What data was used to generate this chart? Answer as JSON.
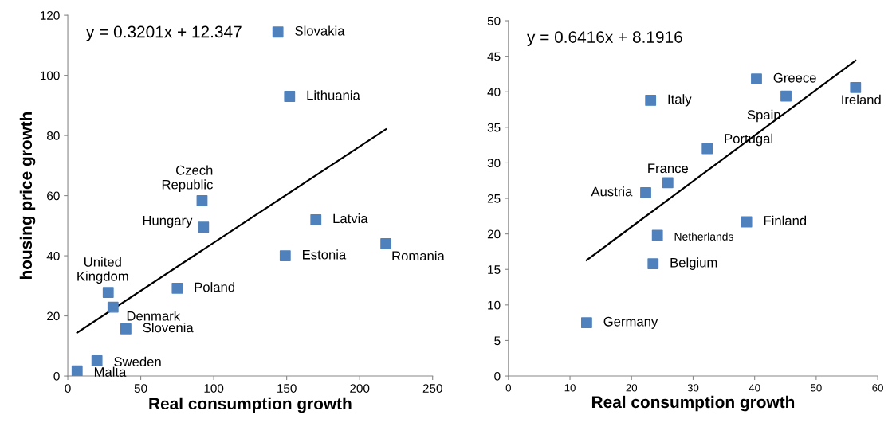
{
  "chart_data": [
    {
      "type": "scatter",
      "xlabel": "Real consumption growth",
      "ylabel": "housing price growth",
      "xlim": [
        0,
        250
      ],
      "xticks": [
        0,
        50,
        100,
        150,
        200,
        250
      ],
      "ylim": [
        0,
        120
      ],
      "yticks": [
        0,
        20,
        40,
        60,
        80,
        100,
        120
      ],
      "grid": false,
      "series": [
        {
          "marker": "square",
          "color": "#4f81bd",
          "x": [
            144,
            152,
            92,
            93,
            170,
            218,
            149,
            75,
            27.7,
            31,
            39.8,
            20,
            6.4
          ],
          "values": [
            114.4,
            93,
            58.3,
            49.5,
            52,
            44,
            40,
            29.2,
            27.8,
            22.9,
            15.7,
            5.1,
            1.7
          ]
        },
        {
          "type": "line",
          "color": "#000000",
          "x": [
            6.4,
            218
          ],
          "values": [
            14.4,
            82.1
          ]
        }
      ],
      "annotations": [
        "y = 0.3201x + 12.347",
        {
          "text": "Slovakia",
          "x": 144,
          "y": 114.4
        },
        {
          "text": "Lithuania",
          "x": 152,
          "y": 93
        },
        {
          "text": "Czech\nRepublic",
          "x": 92,
          "y": 58.3
        },
        {
          "text": "Hungary",
          "x": 93,
          "y": 49.5
        },
        {
          "text": "Latvia",
          "x": 170,
          "y": 52
        },
        {
          "text": "Romania",
          "x": 218,
          "y": 44
        },
        {
          "text": "Estonia",
          "x": 149,
          "y": 40
        },
        {
          "text": "Poland",
          "x": 75,
          "y": 29.2
        },
        {
          "text": "United\nKingdom",
          "x": 27.7,
          "y": 27.8
        },
        {
          "text": "Denmark",
          "x": 31,
          "y": 22.9
        },
        {
          "text": "Slovenia",
          "x": 39.8,
          "y": 15.7
        },
        {
          "text": "Sweden",
          "x": 20,
          "y": 5.1
        },
        {
          "text": "Malta",
          "x": 6.4,
          "y": 1.7
        }
      ]
    },
    {
      "type": "scatter",
      "xlabel": "Real consumption growth",
      "xlim": [
        0,
        60
      ],
      "xticks": [
        0,
        10,
        20,
        30,
        40,
        50,
        60
      ],
      "ylim": [
        0,
        50
      ],
      "yticks": [
        0,
        5,
        10,
        15,
        20,
        25,
        30,
        35,
        40,
        45,
        50
      ],
      "grid": false,
      "series": [
        {
          "marker": "square",
          "color": "#4f81bd",
          "x": [
            40.3,
            45.1,
            56.4,
            23.1,
            32.3,
            25.9,
            22.3,
            38.7,
            24.2,
            23.5,
            12.7
          ],
          "values": [
            41.8,
            39.4,
            40.6,
            38.8,
            32.0,
            27.2,
            25.8,
            21.7,
            19.8,
            15.8,
            7.5
          ]
        },
        {
          "type": "line",
          "color": "#000000",
          "x": [
            12.7,
            56.4
          ],
          "values": [
            16.3,
            44.4
          ]
        }
      ],
      "annotations": [
        "y = 0.6416x + 8.1916",
        {
          "text": "Greece",
          "x": 40.3,
          "y": 41.8
        },
        {
          "text": "Spain",
          "x": 45.1,
          "y": 39.4
        },
        {
          "text": "Ireland",
          "x": 56.4,
          "y": 40.6
        },
        {
          "text": "Italy",
          "x": 23.1,
          "y": 38.8
        },
        {
          "text": "Portugal",
          "x": 32.3,
          "y": 32.0
        },
        {
          "text": "France",
          "x": 25.9,
          "y": 27.2
        },
        {
          "text": "Austria",
          "x": 22.3,
          "y": 25.8
        },
        {
          "text": "Finland",
          "x": 38.7,
          "y": 21.7
        },
        {
          "text": "Netherlands",
          "x": 24.2,
          "y": 19.8
        },
        {
          "text": "Belgium",
          "x": 23.5,
          "y": 15.8
        },
        {
          "text": "Germany",
          "x": 12.7,
          "y": 7.5
        }
      ]
    }
  ]
}
